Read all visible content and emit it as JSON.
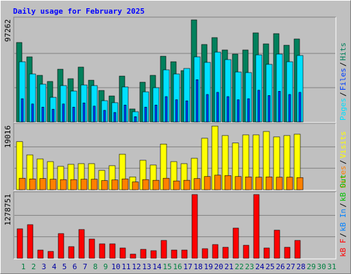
{
  "chart_data": {
    "type": "bar",
    "title": "Daily usage for February 2025",
    "separator": "/",
    "categories": [
      "1",
      "2",
      "3",
      "4",
      "5",
      "6",
      "7",
      "8",
      "9",
      "10",
      "11",
      "12",
      "13",
      "14",
      "15",
      "16",
      "17",
      "18",
      "19",
      "20",
      "21",
      "22",
      "23",
      "24",
      "25",
      "26",
      "27",
      "28",
      "29",
      "30",
      "31"
    ],
    "category_colors": [
      "#008040",
      "#008040",
      "#0000a0",
      "#0000a0",
      "#0000a0",
      "#0000a0",
      "#0000a0",
      "#008040",
      "#008040",
      "#0000a0",
      "#0000a0",
      "#0000a0",
      "#0000a0",
      "#0000a0",
      "#008040",
      "#008040",
      "#0000a0",
      "#0000a0",
      "#0000a0",
      "#0000a0",
      "#0000a0",
      "#008040",
      "#008040",
      "#0000a0",
      "#0000a0",
      "#0000a0",
      "#0000a0",
      "#0000a0",
      "#008040",
      "#008040",
      "#008040"
    ],
    "panels": [
      {
        "ylim": [
          0,
          97262
        ],
        "yticks": [
          97262
        ],
        "series": [
          {
            "name": "Pages",
            "color": "#00e0ff",
            "values": [
              57000,
              45400,
              35700,
              23300,
              34400,
              29200,
              35000,
              34400,
              20100,
              18200,
              33100,
              9700,
              28500,
              32400,
              49300,
              45400,
              50600,
              61600,
              56400,
              66100,
              59000,
              47300,
              46700,
              63500,
              54500,
              64200,
              57000,
              62900,
              null,
              null,
              null
            ]
          },
          {
            "name": "Files",
            "color": "#0040ff",
            "values": [
              22000,
              17000,
              14000,
              12000,
              17000,
              14000,
              18000,
              15000,
              11000,
              9000,
              16000,
              5000,
              14000,
              16000,
              24000,
              21000,
              20000,
              40000,
              26000,
              28000,
              24000,
              21000,
              22000,
              30000,
              25000,
              29000,
              26000,
              28000,
              null,
              null,
              null
            ]
          },
          {
            "name": "Hits",
            "color": "#00805c",
            "values": [
              75200,
              61600,
              44100,
              38300,
              49900,
              40900,
              51900,
              39500,
              29800,
              24600,
              43400,
              12300,
              37600,
              44100,
              62200,
              57000,
              48600,
              96600,
              73300,
              79800,
              68100,
              64200,
              68100,
              84300,
              73900,
              83600,
              72600,
              78500,
              null,
              null,
              null
            ]
          }
        ]
      },
      {
        "ylim": [
          0,
          19016
        ],
        "yticks": [
          19016
        ],
        "series": [
          {
            "name": "Sites",
            "color": "#ff8000",
            "values": [
              3400,
              3200,
              3300,
              3100,
              3000,
              3000,
              3100,
              3100,
              2700,
              2900,
              3200,
              2300,
              3000,
              2800,
              3400,
              2600,
              2800,
              3300,
              3900,
              4300,
              4200,
              3900,
              3800,
              3700,
              3800,
              3700,
              3700,
              3600,
              null,
              null,
              null
            ]
          },
          {
            "name": "Visits",
            "color": "#ffff00",
            "values": [
              14200,
              10300,
              9100,
              8300,
              6900,
              7500,
              7700,
              7700,
              5700,
              7100,
              10500,
              3800,
              8700,
              7300,
              13500,
              8300,
              7700,
              9300,
              15200,
              18800,
              16000,
              13800,
              16200,
              16200,
              17200,
              15600,
              16000,
              16400,
              null,
              null,
              null
            ]
          }
        ]
      },
      {
        "ylim": [
          0,
          1278751
        ],
        "yticks": [
          1278751
        ],
        "series": [
          {
            "name": "kB F",
            "color": "#ff0000",
            "values": [
              585000,
              667000,
              163000,
              136000,
              490000,
              231000,
              571000,
              381000,
              286000,
              286000,
              204000,
              82000,
              177000,
              150000,
              354000,
              163000,
              163000,
              1265000,
              190000,
              272000,
              218000,
              599000,
              258000,
              1265000,
              204000,
              558000,
              218000,
              354000,
              null,
              null,
              null
            ]
          },
          {
            "name": "kB In",
            "color": "#0080ff",
            "values": [
              null,
              null,
              null,
              null,
              null,
              null,
              null,
              null,
              null,
              null,
              null,
              null,
              null,
              null,
              null,
              null,
              null,
              null,
              null,
              null,
              null,
              null,
              null,
              null,
              null,
              null,
              null,
              null,
              null,
              null,
              null
            ]
          },
          {
            "name": "kB Out",
            "color": "#00c000",
            "values": [
              null,
              null,
              null,
              null,
              null,
              null,
              null,
              null,
              null,
              null,
              null,
              null,
              null,
              null,
              null,
              null,
              null,
              null,
              null,
              null,
              null,
              null,
              null,
              null,
              null,
              null,
              null,
              null,
              null,
              null,
              null
            ]
          }
        ]
      }
    ]
  }
}
